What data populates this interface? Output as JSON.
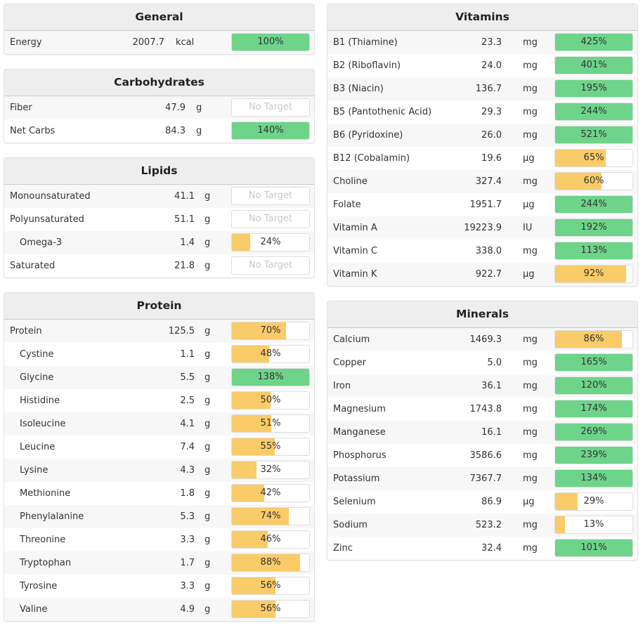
{
  "colors": {
    "met": "#6dd48a",
    "partial": "#f9cb69",
    "header_bg": "#eeeeee"
  },
  "no_target_label": "No Target",
  "panels": [
    {
      "id": "general",
      "title": "General",
      "rows": [
        [
          "Energy",
          "2007.7",
          "kcal",
          100,
          false
        ]
      ]
    },
    {
      "id": "carbohydrates",
      "title": "Carbohydrates",
      "rows": [
        [
          "Fiber",
          "47.9",
          "g",
          null,
          false
        ],
        [
          "Net Carbs",
          "84.3",
          "g",
          140,
          false
        ]
      ]
    },
    {
      "id": "lipids",
      "title": "Lipids",
      "rows": [
        [
          "Monounsaturated",
          "41.1",
          "g",
          null,
          false
        ],
        [
          "Polyunsaturated",
          "51.1",
          "g",
          null,
          false
        ],
        [
          "Omega-3",
          "1.4",
          "g",
          24,
          true
        ],
        [
          "Saturated",
          "21.8",
          "g",
          null,
          false
        ]
      ]
    },
    {
      "id": "protein",
      "title": "Protein",
      "rows": [
        [
          "Protein",
          "125.5",
          "g",
          70,
          false
        ],
        [
          "Cystine",
          "1.1",
          "g",
          48,
          true
        ],
        [
          "Glycine",
          "5.5",
          "g",
          138,
          true
        ],
        [
          "Histidine",
          "2.5",
          "g",
          50,
          true
        ],
        [
          "Isoleucine",
          "4.1",
          "g",
          51,
          true
        ],
        [
          "Leucine",
          "7.4",
          "g",
          55,
          true
        ],
        [
          "Lysine",
          "4.3",
          "g",
          32,
          true
        ],
        [
          "Methionine",
          "1.8",
          "g",
          42,
          true
        ],
        [
          "Phenylalanine",
          "5.3",
          "g",
          74,
          true
        ],
        [
          "Threonine",
          "3.3",
          "g",
          46,
          true
        ],
        [
          "Tryptophan",
          "1.7",
          "g",
          88,
          true
        ],
        [
          "Tyrosine",
          "3.3",
          "g",
          56,
          true
        ],
        [
          "Valine",
          "4.9",
          "g",
          56,
          true
        ]
      ]
    },
    {
      "id": "vitamins",
      "title": "Vitamins",
      "rows": [
        [
          "B1 (Thiamine)",
          "23.3",
          "mg",
          425,
          false
        ],
        [
          "B2 (Riboflavin)",
          "24.0",
          "mg",
          401,
          false
        ],
        [
          "B3 (Niacin)",
          "136.7",
          "mg",
          195,
          false
        ],
        [
          "B5 (Pantothenic Acid)",
          "29.3",
          "mg",
          244,
          false
        ],
        [
          "B6 (Pyridoxine)",
          "26.0",
          "mg",
          521,
          false
        ],
        [
          "B12 (Cobalamin)",
          "19.6",
          "µg",
          65,
          false
        ],
        [
          "Choline",
          "327.4",
          "mg",
          60,
          false
        ],
        [
          "Folate",
          "1951.7",
          "µg",
          244,
          false
        ],
        [
          "Vitamin A",
          "19223.9",
          "IU",
          192,
          false
        ],
        [
          "Vitamin C",
          "338.0",
          "mg",
          113,
          false
        ],
        [
          "Vitamin K",
          "922.7",
          "µg",
          92,
          false
        ]
      ]
    },
    {
      "id": "minerals",
      "title": "Minerals",
      "rows": [
        [
          "Calcium",
          "1469.3",
          "mg",
          86,
          false
        ],
        [
          "Copper",
          "5.0",
          "mg",
          165,
          false
        ],
        [
          "Iron",
          "36.1",
          "mg",
          120,
          false
        ],
        [
          "Magnesium",
          "1743.8",
          "mg",
          174,
          false
        ],
        [
          "Manganese",
          "16.1",
          "mg",
          269,
          false
        ],
        [
          "Phosphorus",
          "3586.6",
          "mg",
          239,
          false
        ],
        [
          "Potassium",
          "7367.7",
          "mg",
          134,
          false
        ],
        [
          "Selenium",
          "86.9",
          "µg",
          29,
          false
        ],
        [
          "Sodium",
          "523.2",
          "mg",
          13,
          false
        ],
        [
          "Zinc",
          "32.4",
          "mg",
          101,
          false
        ]
      ]
    }
  ]
}
